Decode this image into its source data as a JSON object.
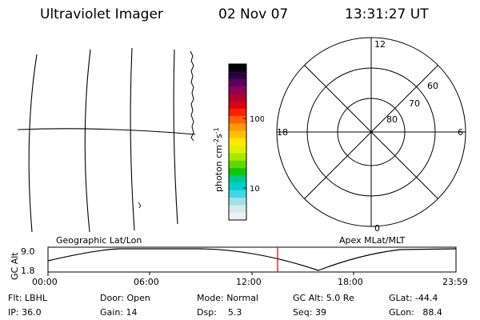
{
  "header": {
    "instrument": "Ultraviolet Imager",
    "date": "02 Nov 07",
    "time": "13:31:27 UT"
  },
  "colorbar": {
    "label": "photon cm",
    "label_sup1": "-2",
    "label_s": "s",
    "label_sup2": "-1",
    "ticks": [
      "100",
      "10"
    ],
    "colors": [
      "#000000",
      "#2b0040",
      "#5a0060",
      "#8a005a",
      "#b00030",
      "#d8001a",
      "#ff2000",
      "#ff6000",
      "#ff9800",
      "#ffc000",
      "#ffe800",
      "#e0f000",
      "#a8e800",
      "#60d800",
      "#10c800",
      "#00c890",
      "#00d0d0",
      "#40d8e8",
      "#a0e0e8",
      "#d8e8ec",
      "#f0f0f0"
    ]
  },
  "labels": {
    "geographic": "Geographic Lat/Lon",
    "apex": "Apex MLat/MLT"
  },
  "polar": {
    "mlt": {
      "top": "12",
      "bottom": "0",
      "left": "18",
      "right": "6"
    },
    "lat": [
      "60",
      "70",
      "80"
    ]
  },
  "altitude_plot": {
    "ylabel": "GC Alt",
    "yticks": [
      "9.0",
      "1.8"
    ],
    "xticks": [
      "00:00",
      "06:00",
      "12:00",
      "18:00",
      "23:59"
    ],
    "marker_color": "#cc0000"
  },
  "status": {
    "flt_label": "Flt:",
    "flt_value": "LBHL",
    "ip_label": "IP:",
    "ip_value": "36.0",
    "door_label": "Door:",
    "door_value": "Open",
    "gain_label": "Gain:",
    "gain_value": "14",
    "mode_label": "Mode:",
    "mode_value": "Normal",
    "dsp_label": "Dsp:",
    "dsp_value": "5.3",
    "gcalt_label": "GC Alt:",
    "gcalt_value": "5.0 Re",
    "seq_label": "Seq:",
    "seq_value": "39",
    "glat_label": "GLat:",
    "glat_value": "-44.4",
    "glon_label": "GLon:",
    "glon_value": "88.4"
  }
}
